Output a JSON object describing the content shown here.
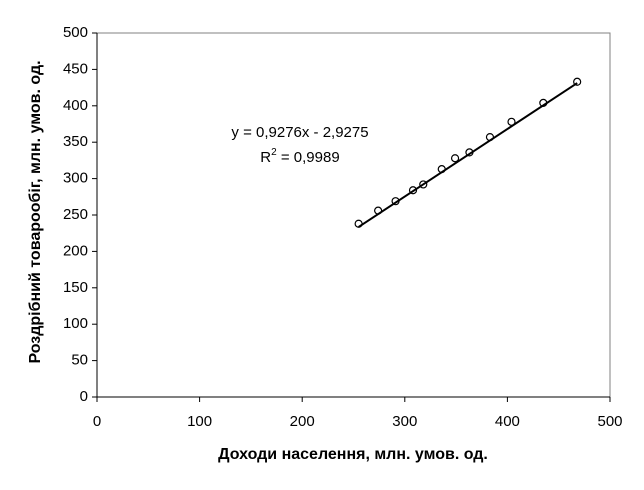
{
  "chart_data": {
    "type": "scatter",
    "x_label": "Доходи населення, млн. умов. од.",
    "y_label": "Роздрібний товарообіг, млн. умов. од.",
    "x": [
      255,
      274,
      291,
      308,
      318,
      336,
      349,
      363,
      383,
      404,
      435,
      468
    ],
    "values": [
      238,
      256,
      269,
      284,
      292,
      313,
      328,
      336,
      357,
      378,
      404,
      433
    ],
    "color": "#000000",
    "xlim": [
      0,
      500
    ],
    "xticks": [
      0,
      100,
      200,
      300,
      400,
      500
    ],
    "ylim": [
      0,
      500
    ],
    "yticks": [
      0,
      50,
      100,
      150,
      200,
      250,
      300,
      350,
      400,
      450,
      500
    ],
    "grid": false,
    "trendline": {
      "slope": 0.9276,
      "intercept": -2.9275,
      "label": "y = 0,9276x - 2,9275",
      "r_squared": {
        "label": "R",
        "sup": "2",
        "rest": " = 0,9989"
      }
    }
  }
}
